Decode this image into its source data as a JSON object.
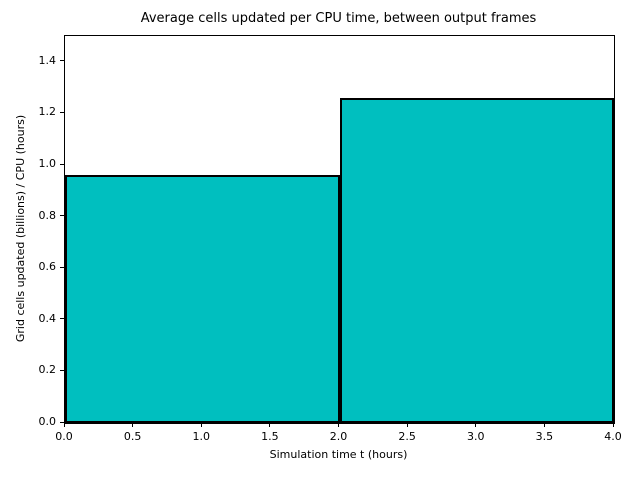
{
  "chart_data": {
    "type": "bar",
    "title": "Average cells updated per CPU time, between output frames",
    "xlabel": "Simulation time t (hours)",
    "ylabel": "Grid cells updated (billions) / CPU (hours)",
    "bars": [
      {
        "x_start": 0,
        "x_end": 2,
        "value": 0.96
      },
      {
        "x_start": 2,
        "x_end": 4,
        "value": 1.26
      }
    ],
    "xlim": [
      0,
      4
    ],
    "ylim": [
      0,
      1.5
    ],
    "x_ticks": [
      0.0,
      0.5,
      1.0,
      1.5,
      2.0,
      2.5,
      3.0,
      3.5,
      4.0
    ],
    "x_tick_labels": [
      "0.0",
      "0.5",
      "1.0",
      "1.5",
      "2.0",
      "2.5",
      "3.0",
      "3.5",
      "4.0"
    ],
    "y_ticks": [
      0.0,
      0.2,
      0.4,
      0.6,
      0.8,
      1.0,
      1.2,
      1.4
    ],
    "y_tick_labels": [
      "0.0",
      "0.2",
      "0.4",
      "0.6",
      "0.8",
      "1.0",
      "1.2",
      "1.4"
    ],
    "bar_fill_color": "#00bfbf",
    "bar_edge_color": "#000000",
    "grid": false,
    "legend_position": "none"
  }
}
